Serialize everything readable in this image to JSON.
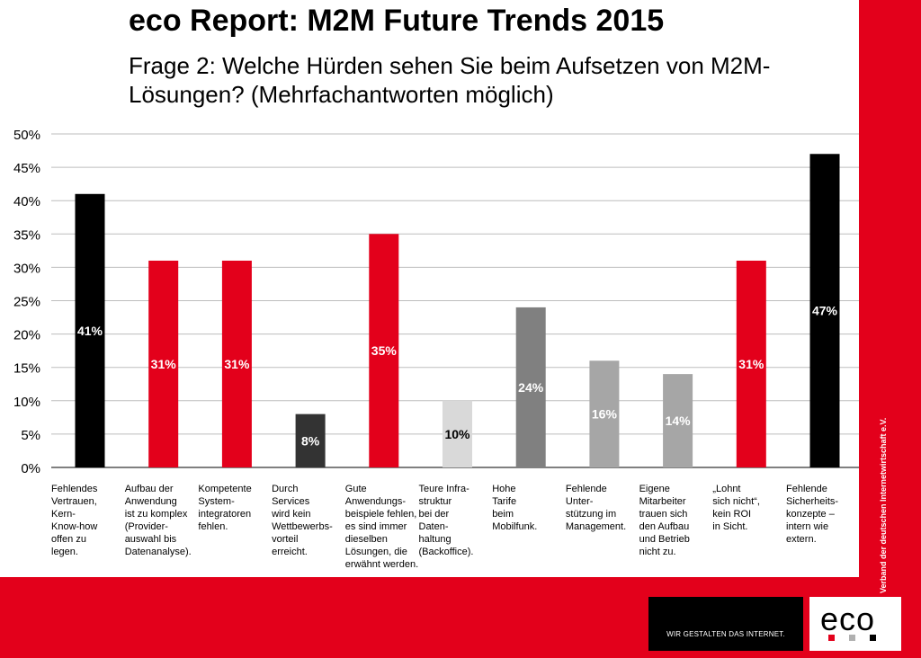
{
  "header": {
    "title": "eco Report: M2M Future Trends 2015",
    "subtitle": "Frage 2: Welche Hürden sehen Sie beim Aufsetzen von M2M-Lösungen? (Mehrfachantworten möglich)"
  },
  "branding": {
    "vertical_text": "Verband der deutschen Internetwirtschaft e.V.",
    "slogan": "WIR GESTALTEN DAS INTERNET.",
    "logo": "eco",
    "accent_color": "#e3001b"
  },
  "chart_data": {
    "type": "bar",
    "categories": [
      "Fehlendes\nVertrauen,\nKern-\nKnow-how\noffen zu\nlegen.",
      "Aufbau der\nAnwendung\nist zu komplex\n(Provider-\nauswahl bis\nDatenanalyse).",
      "Kompetente\nSystem-\nintegratoren\nfehlen.",
      "Durch\nServices\nwird kein\nWettbewerbs-\nvorteil\nerreicht.",
      "Gute\nAnwendungs-\nbeispiele fehlen,\nes sind immer\ndieselben\nLösungen, die\nerwähnt werden.",
      "Teure Infra-\nstruktur\nbei der\nDaten-\nhaltung\n(Backoffice).",
      "Hohe\nTarife\nbeim\nMobilfunk.",
      "Fehlende\nUnter-\nstützung im\nManagement.",
      "Eigene\nMitarbeiter\ntrauen sich\nden Aufbau\nund Betrieb\nnicht zu.",
      "„Lohnt\nsich nicht“,\nkein ROI\nin Sicht.",
      "Fehlende\nSicherheits-\nkonzepte –\nintern wie\nextern."
    ],
    "values": [
      41,
      31,
      31,
      8,
      35,
      10,
      24,
      16,
      14,
      31,
      47
    ],
    "data_labels": [
      "41%",
      "31%",
      "31%",
      "8%",
      "35%",
      "10%",
      "24%",
      "16%",
      "14%",
      "31%",
      "47%"
    ],
    "bar_colors": [
      "#000000",
      "#e3001b",
      "#e3001b",
      "#333333",
      "#e3001b",
      "#d9d9d9",
      "#808080",
      "#a6a6a6",
      "#a6a6a6",
      "#e3001b",
      "#000000"
    ],
    "label_colors": [
      "#ffffff",
      "#ffffff",
      "#ffffff",
      "#ffffff",
      "#ffffff",
      "#000000",
      "#ffffff",
      "#ffffff",
      "#ffffff",
      "#ffffff",
      "#ffffff"
    ],
    "ylim": [
      0,
      50
    ],
    "yticks": [
      "0%",
      "5%",
      "10%",
      "15%",
      "20%",
      "25%",
      "30%",
      "35%",
      "40%",
      "45%",
      "50%"
    ],
    "grid": true,
    "xlabel": "",
    "ylabel": ""
  }
}
